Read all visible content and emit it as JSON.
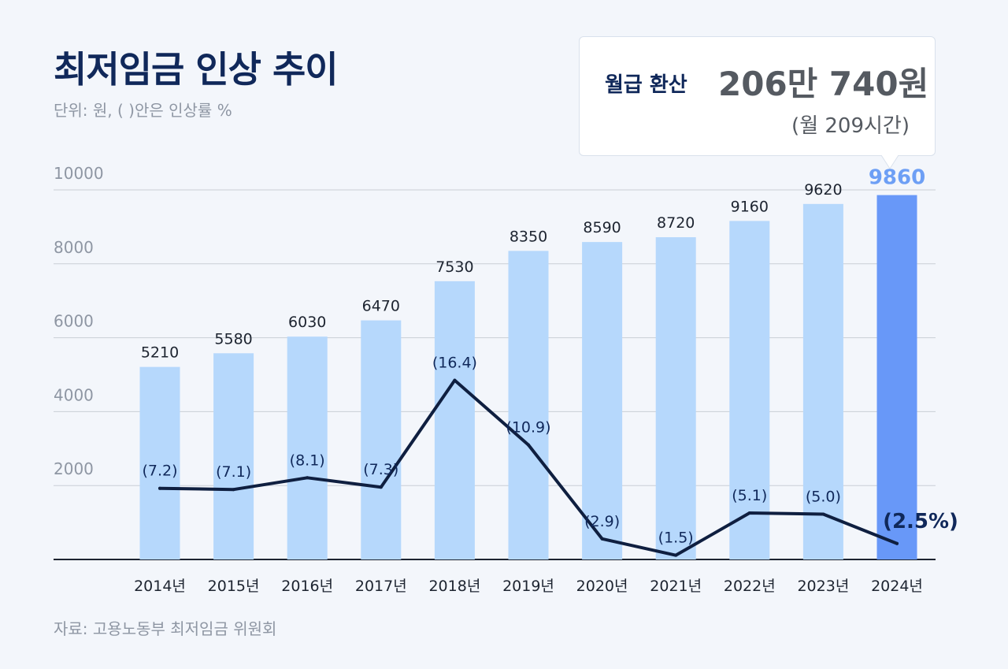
{
  "title": "최저임금 인상 추이",
  "subtitle": "단위: 원, ( )안은 인상률 %",
  "source": "자료: 고용노동부 최저임금 위원회",
  "callout": {
    "label": "월급 환산",
    "amount": "206만 740원",
    "hours": "(월 209시간)"
  },
  "colors": {
    "bar": "#b6d8fc",
    "bar_highlight": "#6898f8",
    "line": "#0f1f40",
    "grid": "#c9ced6",
    "baseline": "#1d2430"
  },
  "chart_data": {
    "type": "bar",
    "categories": [
      "2014년",
      "2015년",
      "2016년",
      "2017년",
      "2018년",
      "2019년",
      "2020년",
      "2021년",
      "2022년",
      "2023년",
      "2024년"
    ],
    "series": [
      {
        "type": "bar",
        "values": [
          5210,
          5580,
          6030,
          6470,
          7530,
          8350,
          8590,
          8720,
          9160,
          9620,
          9860
        ]
      },
      {
        "type": "line",
        "values": [
          7.2,
          7.1,
          8.1,
          7.3,
          16.4,
          10.9,
          2.9,
          1.5,
          5.1,
          5.0,
          2.5
        ],
        "labels": [
          "(7.2)",
          "(7.1)",
          "(8.1)",
          "(7.3)",
          "(16.4)",
          "(10.9)",
          "(2.9)",
          "(1.5)",
          "(5.1)",
          "(5.0)",
          "(2.5%)"
        ]
      }
    ],
    "yticks": [
      2000,
      4000,
      6000,
      8000,
      10000
    ],
    "ylim": [
      0,
      10000
    ],
    "highlight_index": 10,
    "grid": true
  }
}
